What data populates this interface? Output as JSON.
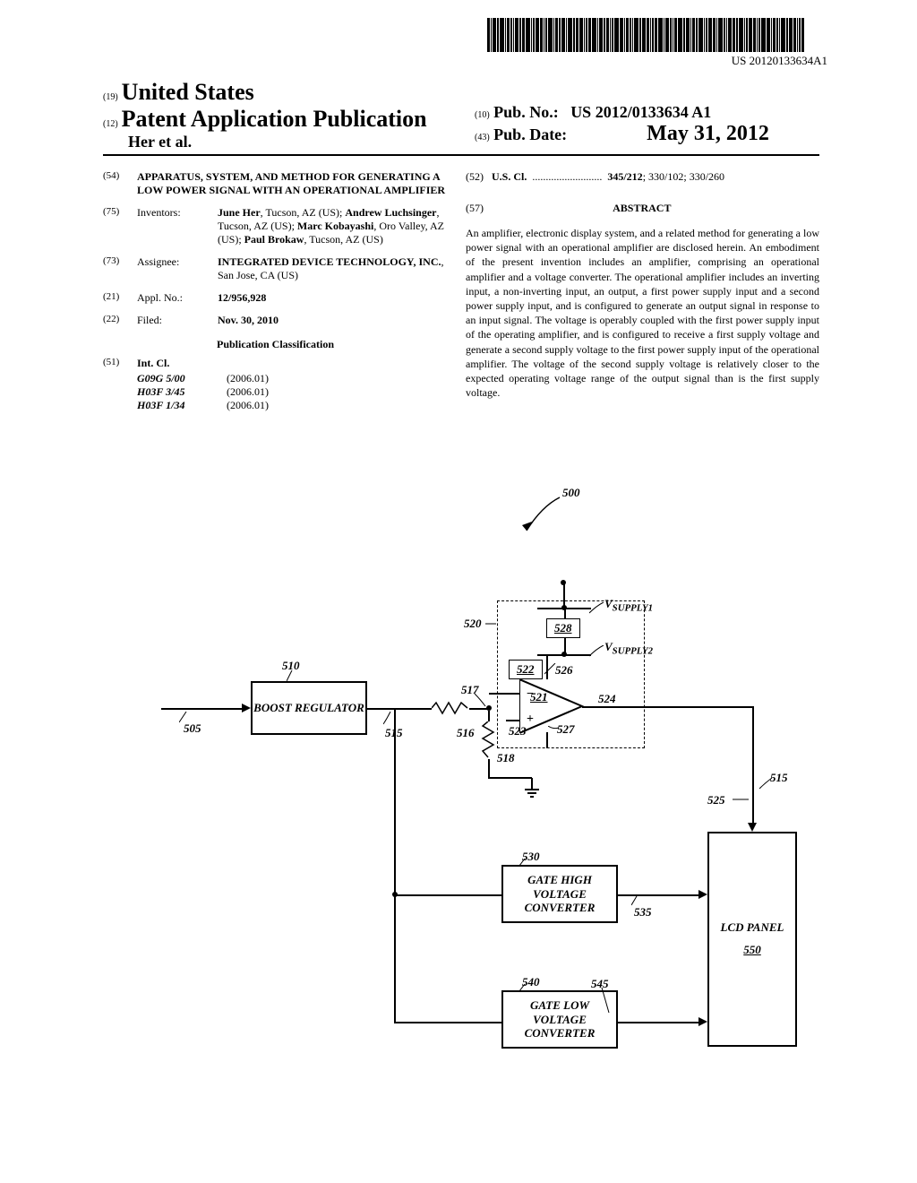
{
  "barcode_number": "US 20120133634A1",
  "header": {
    "country_prefix": "(19)",
    "country": "United States",
    "pub_type_prefix": "(12)",
    "pub_type": "Patent Application Publication",
    "authors": "Her et al.",
    "pub_no_prefix": "(10)",
    "pub_no_label": "Pub. No.:",
    "pub_no": "US 2012/0133634 A1",
    "pub_date_prefix": "(43)",
    "pub_date_label": "Pub. Date:",
    "pub_date": "May 31, 2012"
  },
  "fields": {
    "title": {
      "num": "(54)",
      "value": "APPARATUS, SYSTEM, AND METHOD FOR GENERATING A LOW POWER SIGNAL WITH AN OPERATIONAL AMPLIFIER"
    },
    "inventors": {
      "num": "(75)",
      "label": "Inventors:",
      "value_html": "<b>June Her</b>, Tucson, AZ (US); <b>Andrew Luchsinger</b>, Tucson, AZ (US); <b>Marc Kobayashi</b>, Oro Valley, AZ (US); <b>Paul Brokaw</b>, Tucson, AZ (US)"
    },
    "assignee": {
      "num": "(73)",
      "label": "Assignee:",
      "value_html": "<b>INTEGRATED DEVICE TECHNOLOGY, INC.</b>, San Jose, CA (US)"
    },
    "appl_no": {
      "num": "(21)",
      "label": "Appl. No.:",
      "value": "12/956,928"
    },
    "filed": {
      "num": "(22)",
      "label": "Filed:",
      "value": "Nov. 30, 2010"
    },
    "pub_class_heading": "Publication Classification",
    "int_cl": {
      "num": "(51)",
      "label": "Int. Cl.",
      "items": [
        {
          "code": "G09G 5/00",
          "ver": "(2006.01)"
        },
        {
          "code": "H03F 3/45",
          "ver": "(2006.01)"
        },
        {
          "code": "H03F 1/34",
          "ver": "(2006.01)"
        }
      ]
    },
    "us_cl": {
      "num": "(52)",
      "label": "U.S. Cl.",
      "value": "345/212; 330/102; 330/260"
    },
    "abstract_num": "(57)",
    "abstract_heading": "ABSTRACT",
    "abstract": "An amplifier, electronic display system, and a related method for generating a low power signal with an operational amplifier are disclosed herein. An embodiment of the present invention includes an amplifier, comprising an operational amplifier and a voltage converter. The operational amplifier includes an inverting input, a non-inverting input, an output, a first power supply input and a second power supply input, and is configured to generate an output signal in response to an input signal. The voltage is operably coupled with the first power supply input of the operating amplifier, and is configured to receive a first supply voltage and generate a second supply voltage to the first power supply input of the operational amplifier. The voltage of the second supply voltage is relatively closer to the expected operating voltage range of the output signal than is the first supply voltage."
  },
  "figure": {
    "ref_500": "500",
    "boost_reg": "BOOST REGULATOR",
    "gate_high": "GATE HIGH VOLTAGE CONVERTER",
    "gate_low": "GATE LOW VOLTAGE CONVERTER",
    "lcd_panel": "LCD PANEL",
    "vsupply1": "V",
    "vsupply1_sub": "SUPPLY1",
    "vsupply2": "V",
    "vsupply2_sub": "SUPPLY2",
    "labels": {
      "l505": "505",
      "l510": "510",
      "l515a": "515",
      "l515b": "515",
      "l516": "516",
      "l517": "517",
      "l518": "518",
      "l520": "520",
      "l521": "521",
      "l522": "522",
      "l523": "523",
      "l524": "524",
      "l525": "525",
      "l526": "526",
      "l527": "527",
      "l528": "528",
      "l530": "530",
      "l535": "535",
      "l540": "540",
      "l545": "545",
      "l550": "550"
    },
    "colors": {
      "line": "#000000",
      "bg": "#ffffff"
    }
  }
}
